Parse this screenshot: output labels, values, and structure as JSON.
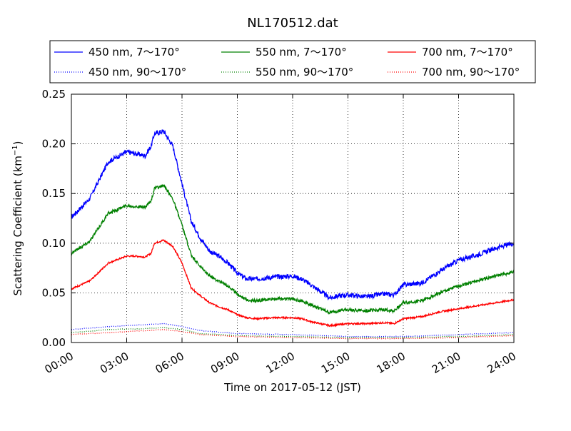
{
  "chart_data": {
    "type": "line",
    "title": "NL170512.dat",
    "xlabel": "Time on 2017-05-12 (JST)",
    "ylabel": "Scattering Coefficient (km",
    "ylabel_exponent": "−1",
    "ylabel_close": ")",
    "xlim": [
      "00:00",
      "24:00"
    ],
    "ylim": [
      0,
      0.25
    ],
    "x_ticks": [
      "00:00",
      "03:00",
      "06:00",
      "09:00",
      "12:00",
      "15:00",
      "18:00",
      "21:00",
      "24:00"
    ],
    "y_ticks": [
      "0.00",
      "0.05",
      "0.10",
      "0.15",
      "0.20",
      "0.25"
    ],
    "grid": true,
    "legend_position": "top",
    "legend_columns": 3,
    "series": [
      {
        "name": "450 nm, 7～170°",
        "color": "#0000ff",
        "style": "solid",
        "x": [
          "00:00",
          "01:00",
          "02:00",
          "03:00",
          "03:30",
          "04:00",
          "04:20",
          "04:30",
          "05:00",
          "05:30",
          "06:00",
          "06:30",
          "07:00",
          "07:30",
          "08:00",
          "08:30",
          "09:00",
          "09:30",
          "10:00",
          "11:00",
          "12:00",
          "12:30",
          "13:00",
          "14:00",
          "14:30",
          "15:00",
          "16:00",
          "17:00",
          "17:30",
          "18:00",
          "19:00",
          "20:00",
          "21:00",
          "22:00",
          "23:00",
          "24:00"
        ],
        "values": [
          0.126,
          0.145,
          0.182,
          0.192,
          0.19,
          0.188,
          0.198,
          0.21,
          0.213,
          0.198,
          0.16,
          0.122,
          0.105,
          0.092,
          0.087,
          0.08,
          0.07,
          0.064,
          0.064,
          0.066,
          0.067,
          0.064,
          0.058,
          0.045,
          0.047,
          0.048,
          0.046,
          0.049,
          0.048,
          0.058,
          0.06,
          0.072,
          0.083,
          0.088,
          0.095,
          0.1
        ]
      },
      {
        "name": "550 nm, 7～170°",
        "color": "#008000",
        "style": "solid",
        "x": [
          "00:00",
          "01:00",
          "02:00",
          "03:00",
          "03:30",
          "04:00",
          "04:20",
          "04:30",
          "05:00",
          "05:30",
          "06:00",
          "06:30",
          "07:00",
          "07:30",
          "08:00",
          "08:30",
          "09:00",
          "09:30",
          "10:00",
          "11:00",
          "12:00",
          "12:30",
          "13:00",
          "14:00",
          "14:30",
          "15:00",
          "16:00",
          "17:00",
          "17:30",
          "18:00",
          "19:00",
          "20:00",
          "21:00",
          "22:00",
          "23:00",
          "24:00"
        ],
        "values": [
          0.09,
          0.102,
          0.13,
          0.138,
          0.137,
          0.136,
          0.143,
          0.155,
          0.158,
          0.145,
          0.118,
          0.088,
          0.076,
          0.067,
          0.062,
          0.057,
          0.049,
          0.043,
          0.042,
          0.044,
          0.044,
          0.042,
          0.038,
          0.03,
          0.032,
          0.033,
          0.032,
          0.033,
          0.032,
          0.04,
          0.042,
          0.05,
          0.057,
          0.062,
          0.067,
          0.071
        ]
      },
      {
        "name": "700 nm, 7～170°",
        "color": "#ff0000",
        "style": "solid",
        "x": [
          "00:00",
          "01:00",
          "02:00",
          "03:00",
          "03:30",
          "04:00",
          "04:20",
          "04:30",
          "05:00",
          "05:30",
          "06:00",
          "06:30",
          "07:00",
          "07:30",
          "08:00",
          "08:30",
          "09:00",
          "09:30",
          "10:00",
          "11:00",
          "12:00",
          "12:30",
          "13:00",
          "14:00",
          "14:30",
          "15:00",
          "16:00",
          "17:00",
          "17:30",
          "18:00",
          "19:00",
          "20:00",
          "21:00",
          "22:00",
          "23:00",
          "24:00"
        ],
        "values": [
          0.054,
          0.062,
          0.08,
          0.087,
          0.087,
          0.086,
          0.09,
          0.1,
          0.103,
          0.097,
          0.08,
          0.055,
          0.047,
          0.04,
          0.036,
          0.033,
          0.028,
          0.025,
          0.024,
          0.025,
          0.025,
          0.024,
          0.021,
          0.017,
          0.018,
          0.019,
          0.019,
          0.02,
          0.019,
          0.024,
          0.026,
          0.031,
          0.034,
          0.037,
          0.04,
          0.043
        ]
      },
      {
        "name": "450 nm, 90～170°",
        "color": "#0000ff",
        "style": "dotted",
        "x": [
          "00:00",
          "02:00",
          "04:00",
          "05:00",
          "06:00",
          "07:00",
          "09:00",
          "12:00",
          "15:00",
          "18:00",
          "21:00",
          "24:00"
        ],
        "values": [
          0.013,
          0.016,
          0.018,
          0.019,
          0.016,
          0.012,
          0.009,
          0.008,
          0.006,
          0.006,
          0.008,
          0.01
        ]
      },
      {
        "name": "550 nm, 90～170°",
        "color": "#008000",
        "style": "dotted",
        "x": [
          "00:00",
          "02:00",
          "04:00",
          "05:00",
          "06:00",
          "07:00",
          "09:00",
          "12:00",
          "15:00",
          "18:00",
          "21:00",
          "24:00"
        ],
        "values": [
          0.01,
          0.013,
          0.014,
          0.015,
          0.013,
          0.009,
          0.007,
          0.006,
          0.005,
          0.005,
          0.006,
          0.008
        ]
      },
      {
        "name": "700 nm, 90～170°",
        "color": "#ff0000",
        "style": "dotted",
        "x": [
          "00:00",
          "02:00",
          "04:00",
          "05:00",
          "06:00",
          "07:00",
          "09:00",
          "12:00",
          "15:00",
          "18:00",
          "21:00",
          "24:00"
        ],
        "values": [
          0.008,
          0.01,
          0.012,
          0.013,
          0.011,
          0.008,
          0.006,
          0.005,
          0.004,
          0.004,
          0.005,
          0.007
        ]
      }
    ]
  }
}
